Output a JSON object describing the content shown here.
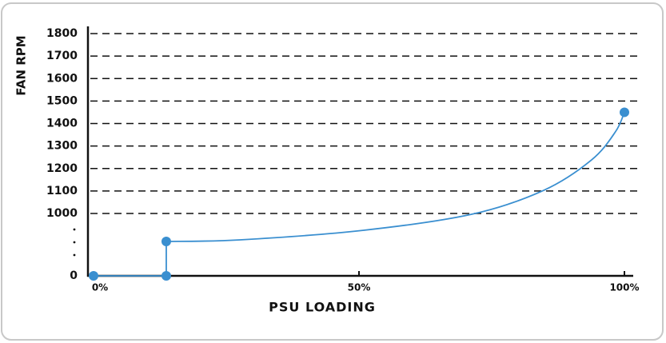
{
  "chart_data": {
    "type": "line",
    "x_label": "PSU LOADING",
    "y_label": "FAN RPM",
    "xlim": [
      0,
      100
    ],
    "xticks": [
      {
        "value": 0,
        "label": "0%"
      },
      {
        "value": 50,
        "label": "50%"
      },
      {
        "value": 100,
        "label": "100%"
      }
    ],
    "ylim": [
      0,
      1800
    ],
    "yticks": [
      0,
      1000,
      1100,
      1200,
      1300,
      1400,
      1500,
      1600,
      1700,
      1800
    ],
    "grid": true,
    "color": "#3a8fd0",
    "x": [
      0,
      13.7,
      13.7,
      27.6,
      50.9,
      71.2,
      84.8,
      93.8,
      98.3,
      100
    ],
    "values": [
      0,
      0,
      551,
      577,
      731,
      987,
      1103,
      1238,
      1363,
      1450
    ],
    "markers": {
      "x": [
        0,
        13.7,
        13.7,
        100
      ],
      "values": [
        0,
        0,
        551,
        1450
      ]
    }
  }
}
